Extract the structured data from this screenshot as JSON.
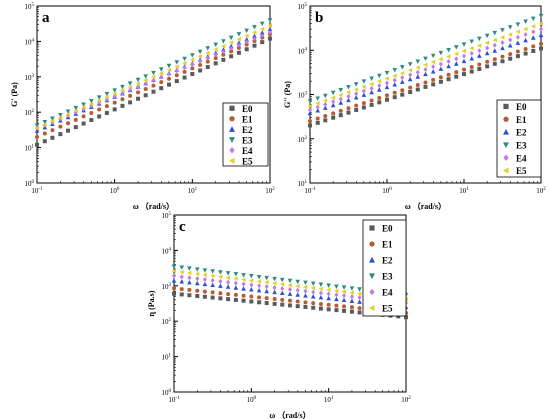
{
  "figure": {
    "series_colors": {
      "E0": "#5a5a5a",
      "E1": "#b85a32",
      "E2": "#2e4fd6",
      "E3": "#2a8a85",
      "E4": "#c27ae0",
      "E5": "#e0d22a"
    },
    "series_markers": {
      "E0": "square",
      "E1": "circle",
      "E2": "triangle-up",
      "E3": "triangle-down",
      "E4": "diamond",
      "E5": "triangle-left"
    }
  },
  "chart_data": [
    {
      "type": "scatter",
      "panel_label": "a",
      "title": "",
      "xlabel": "ω （rad/s）",
      "ylabel": "G' (Pa)",
      "x_scale": "log",
      "y_scale": "log",
      "xlim": [
        0.1,
        100
      ],
      "ylim": [
        1,
        100000
      ],
      "x_ticks": [
        {
          "value": 0.1,
          "base": "10",
          "exp": "-1"
        },
        {
          "value": 1,
          "base": "10",
          "exp": "0"
        },
        {
          "value": 10,
          "base": "10",
          "exp": "1"
        },
        {
          "value": 100,
          "base": "10",
          "exp": "2"
        }
      ],
      "y_ticks": [
        {
          "value": 1,
          "base": "10",
          "exp": "0"
        },
        {
          "value": 10,
          "base": "10",
          "exp": "1"
        },
        {
          "value": 100,
          "base": "10",
          "exp": "2"
        },
        {
          "value": 1000,
          "base": "10",
          "exp": "3"
        },
        {
          "value": 10000,
          "base": "10",
          "exp": "4"
        },
        {
          "value": 100000,
          "base": "10",
          "exp": "5"
        }
      ],
      "legend_position": "center-right",
      "x_points": [
        0.1,
        0.126,
        0.158,
        0.2,
        0.251,
        0.316,
        0.398,
        0.501,
        0.631,
        0.794,
        1,
        1.26,
        1.58,
        2,
        2.51,
        3.16,
        3.98,
        5.01,
        6.31,
        7.94,
        10,
        12.6,
        15.8,
        20,
        25.1,
        31.6,
        39.8,
        50.1,
        63.1,
        79.4,
        100
      ],
      "series": [
        {
          "name": "E0",
          "start": 12,
          "end": 12000
        },
        {
          "name": "E1",
          "start": 20,
          "end": 16000
        },
        {
          "name": "E2",
          "start": 30,
          "end": 22000
        },
        {
          "name": "E3",
          "start": 42,
          "end": 40000
        },
        {
          "name": "E4",
          "start": 35,
          "end": 18000
        },
        {
          "name": "E5",
          "start": 36,
          "end": 28000
        }
      ]
    },
    {
      "type": "scatter",
      "panel_label": "b",
      "title": "",
      "xlabel": "ω （rad/s）",
      "ylabel": "G'' (Pa)",
      "x_scale": "log",
      "y_scale": "log",
      "xlim": [
        0.1,
        100
      ],
      "ylim": [
        10,
        100000
      ],
      "x_ticks": [
        {
          "value": 0.1,
          "base": "10",
          "exp": "-1"
        },
        {
          "value": 1,
          "base": "10",
          "exp": "0"
        },
        {
          "value": 10,
          "base": "10",
          "exp": "1"
        },
        {
          "value": 100,
          "base": "10",
          "exp": "2"
        }
      ],
      "y_ticks": [
        {
          "value": 10,
          "base": "10",
          "exp": "1"
        },
        {
          "value": 100,
          "base": "10",
          "exp": "2"
        },
        {
          "value": 1000,
          "base": "10",
          "exp": "3"
        },
        {
          "value": 10000,
          "base": "10",
          "exp": "4"
        },
        {
          "value": 100000,
          "base": "10",
          "exp": "5"
        }
      ],
      "legend_position": "bottom-right",
      "x_points": [
        0.1,
        0.126,
        0.158,
        0.2,
        0.251,
        0.316,
        0.398,
        0.501,
        0.631,
        0.794,
        1,
        1.26,
        1.58,
        2,
        2.51,
        3.16,
        3.98,
        5.01,
        6.31,
        7.94,
        10,
        12.6,
        15.8,
        20,
        25.1,
        31.6,
        39.8,
        50.1,
        63.1,
        79.4,
        100
      ],
      "series": [
        {
          "name": "E0",
          "start": 200,
          "end": 11000
        },
        {
          "name": "E1",
          "start": 250,
          "end": 14000
        },
        {
          "name": "E2",
          "start": 380,
          "end": 22000
        },
        {
          "name": "E3",
          "start": 700,
          "end": 60000
        },
        {
          "name": "E4",
          "start": 450,
          "end": 30000
        },
        {
          "name": "E5",
          "start": 550,
          "end": 40000
        }
      ]
    },
    {
      "type": "scatter",
      "panel_label": "c",
      "title": "",
      "xlabel": "ω （rad/s）",
      "ylabel": "η (Pa.s)",
      "x_scale": "log",
      "y_scale": "log",
      "xlim": [
        0.1,
        100
      ],
      "ylim": [
        1,
        100000
      ],
      "x_ticks": [
        {
          "value": 0.1,
          "base": "10",
          "exp": "-1"
        },
        {
          "value": 1,
          "base": "10",
          "exp": "0"
        },
        {
          "value": 10,
          "base": "10",
          "exp": "1"
        },
        {
          "value": 100,
          "base": "10",
          "exp": "2"
        }
      ],
      "y_ticks": [
        {
          "value": 1,
          "base": "10",
          "exp": "0"
        },
        {
          "value": 10,
          "base": "10",
          "exp": "1"
        },
        {
          "value": 100,
          "base": "10",
          "exp": "2"
        },
        {
          "value": 1000,
          "base": "10",
          "exp": "3"
        },
        {
          "value": 10000,
          "base": "10",
          "exp": "4"
        },
        {
          "value": 100000,
          "base": "10",
          "exp": "5"
        }
      ],
      "legend_position": "top-right",
      "x_points": [
        0.1,
        0.126,
        0.158,
        0.2,
        0.251,
        0.316,
        0.398,
        0.501,
        0.631,
        0.794,
        1,
        1.26,
        1.58,
        2,
        2.51,
        3.16,
        3.98,
        5.01,
        6.31,
        7.94,
        10,
        12.6,
        15.8,
        20,
        25.1,
        31.6,
        39.8,
        50.1,
        63.1,
        79.4,
        100
      ],
      "series": [
        {
          "name": "E0",
          "start": 600,
          "end": 130
        },
        {
          "name": "E1",
          "start": 850,
          "end": 170
        },
        {
          "name": "E2",
          "start": 1400,
          "end": 250
        },
        {
          "name": "E3",
          "start": 3500,
          "end": 550
        },
        {
          "name": "E4",
          "start": 1900,
          "end": 330
        },
        {
          "name": "E5",
          "start": 2600,
          "end": 420
        }
      ]
    }
  ]
}
